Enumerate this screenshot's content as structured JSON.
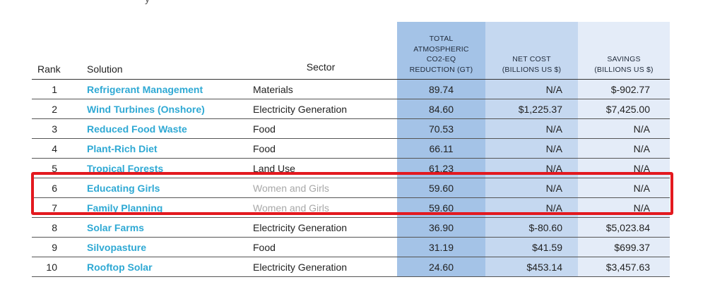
{
  "page": {
    "top_fragment": "y"
  },
  "table": {
    "headers": {
      "rank": "Rank",
      "solution": "Solution",
      "sector": "Sector",
      "total_lines": [
        "TOTAL",
        "ATMOSPHERIC",
        "CO2-EQ",
        "REDUCTION (GT)"
      ],
      "net_cost_lines": [
        "NET COST",
        "(BILLIONS US $)"
      ],
      "savings_lines": [
        "SAVINGS",
        "(BILLIONS US $)"
      ]
    },
    "rows": [
      {
        "rank": "1",
        "solution": "Refrigerant Management",
        "sector": "Materials",
        "total": "89.74",
        "net_cost": "N/A",
        "savings": "$-902.77"
      },
      {
        "rank": "2",
        "solution": "Wind Turbines (Onshore)",
        "sector": "Electricity Generation",
        "total": "84.60",
        "net_cost": "$1,225.37",
        "savings": "$7,425.00"
      },
      {
        "rank": "3",
        "solution": "Reduced Food Waste",
        "sector": "Food",
        "total": "70.53",
        "net_cost": "N/A",
        "savings": "N/A"
      },
      {
        "rank": "4",
        "solution": "Plant-Rich Diet",
        "sector": "Food",
        "total": "66.11",
        "net_cost": "N/A",
        "savings": "N/A"
      },
      {
        "rank": "5",
        "solution": "Tropical Forests",
        "sector": "Land Use",
        "total": "61.23",
        "net_cost": "N/A",
        "savings": "N/A"
      },
      {
        "rank": "6",
        "solution": "Educating Girls",
        "sector": "Women and Girls",
        "total": "59.60",
        "net_cost": "N/A",
        "savings": "N/A"
      },
      {
        "rank": "7",
        "solution": "Family Planning",
        "sector": "Women and Girls",
        "total": "59.60",
        "net_cost": "N/A",
        "savings": "N/A"
      },
      {
        "rank": "8",
        "solution": "Solar Farms",
        "sector": "Electricity Generation",
        "total": "36.90",
        "net_cost": "$-80.60",
        "savings": "$5,023.84"
      },
      {
        "rank": "9",
        "solution": "Silvopasture",
        "sector": "Food",
        "total": "31.19",
        "net_cost": "$41.59",
        "savings": "$699.37"
      },
      {
        "rank": "10",
        "solution": "Rooftop Solar",
        "sector": "Electricity Generation",
        "total": "24.60",
        "net_cost": "$453.14",
        "savings": "$3,457.63"
      }
    ]
  },
  "colors": {
    "solution_link": "#2fa9d4",
    "muted_sector": "#a8a8a8",
    "total_column_bg": "#a4c3e7",
    "net_cost_column_bg": "#c5d8f0",
    "savings_column_bg": "#e4ecf8",
    "highlight_border": "#e3191f"
  }
}
